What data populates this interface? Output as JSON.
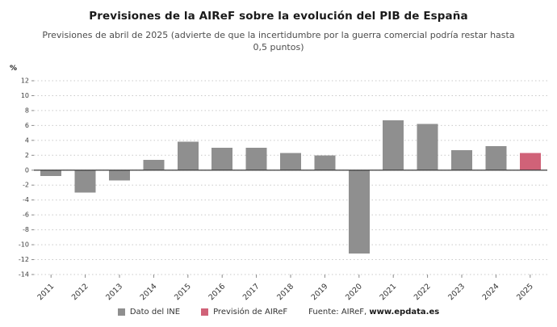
{
  "header": {
    "title": "Previsiones de la AIReF sobre la evolución del PIB de España",
    "subtitle": "Previsiones de abril de 2025 (advierte de que la incertidumbre por la guerra comercial podría restar hasta 0,5 puntos)"
  },
  "source": {
    "prefix": "Fuente: AIReF, ",
    "link": "www.epdata.es"
  },
  "chart_data": {
    "type": "bar",
    "title": "Previsiones de la AIReF sobre la evolución del PIB de España",
    "ylabel": "%",
    "xlabel": "",
    "ylim": [
      -14,
      12
    ],
    "ytick_step": 2,
    "grid": true,
    "gridline_style": "dashed",
    "legend_position": "bottom",
    "categories": [
      "2011",
      "2012",
      "2013",
      "2014",
      "2015",
      "2016",
      "2017",
      "2018",
      "2019",
      "2020",
      "2021",
      "2022",
      "2023",
      "2024",
      "2025"
    ],
    "series": [
      {
        "name": "Dato del INE",
        "color": "#8f8f8f",
        "values": [
          -0.8,
          -3.0,
          -1.4,
          1.4,
          3.8,
          3.0,
          3.0,
          2.3,
          2.0,
          -11.2,
          6.7,
          6.2,
          2.7,
          3.2,
          null
        ]
      },
      {
        "name": "Previsión de AIReF",
        "color": "#d06278",
        "values": [
          null,
          null,
          null,
          null,
          null,
          null,
          null,
          null,
          null,
          null,
          null,
          null,
          null,
          null,
          2.3
        ]
      }
    ]
  }
}
